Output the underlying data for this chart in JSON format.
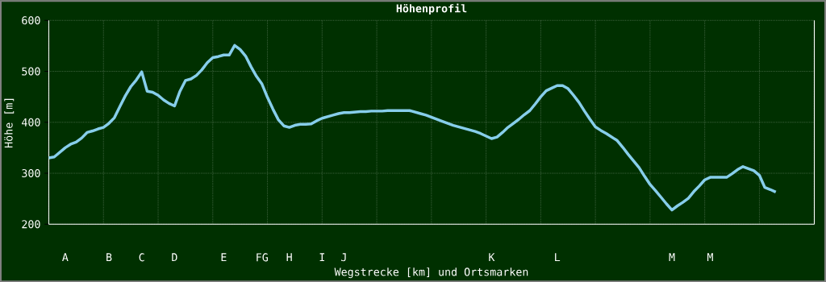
{
  "chart_data": {
    "type": "line",
    "title": "Höhenprofil",
    "xlabel": "Wegstrecke [km] und Ortsmarken",
    "ylabel": "Höhe [m]",
    "categories": [
      null,
      null,
      null,
      "A",
      null,
      null,
      null,
      null,
      null,
      null,
      null,
      "B",
      null,
      null,
      null,
      null,
      null,
      "C",
      null,
      null,
      null,
      null,
      null,
      "D",
      null,
      null,
      null,
      null,
      null,
      null,
      null,
      null,
      "E",
      null,
      null,
      null,
      null,
      null,
      null,
      "FG",
      null,
      null,
      null,
      null,
      "H",
      null,
      null,
      null,
      null,
      null,
      "I",
      null,
      null,
      null,
      "J",
      null,
      null,
      null,
      null,
      null,
      null,
      null,
      null,
      null,
      null,
      null,
      null,
      null,
      null,
      null,
      null,
      null,
      null,
      null,
      null,
      null,
      null,
      null,
      null,
      null,
      null,
      "K",
      null,
      null,
      null,
      null,
      null,
      null,
      null,
      null,
      null,
      null,
      null,
      "L",
      null,
      null,
      null,
      null,
      null,
      null,
      null,
      null,
      null,
      null,
      null,
      null,
      null,
      null,
      null,
      null,
      null,
      null,
      null,
      null,
      "M",
      null,
      null,
      null,
      null,
      null,
      null,
      "M",
      null,
      null,
      null,
      null,
      null,
      null,
      null,
      null,
      null,
      null,
      null,
      null
    ],
    "series": [
      {
        "color": "#87ceeb",
        "values": [
          330,
          332,
          341,
          350,
          357,
          361,
          369,
          380,
          383,
          387,
          390,
          398,
          409,
          431,
          452,
          470,
          483,
          499,
          461,
          459,
          453,
          444,
          437,
          432,
          461,
          482,
          485,
          492,
          503,
          517,
          527,
          529,
          532,
          532,
          551,
          543,
          530,
          509,
          490,
          475,
          449,
          426,
          405,
          393,
          390,
          394,
          396,
          396,
          397,
          403,
          408,
          411,
          414,
          417,
          419,
          419,
          420,
          421,
          421,
          422,
          422,
          422,
          423,
          423,
          423,
          423,
          423,
          420,
          417,
          414,
          410,
          406,
          402,
          398,
          394,
          391,
          388,
          385,
          382,
          378,
          373,
          368,
          371,
          380,
          390,
          398,
          406,
          415,
          423,
          436,
          450,
          462,
          467,
          472,
          472,
          466,
          453,
          439,
          422,
          406,
          391,
          384,
          378,
          371,
          364,
          351,
          337,
          324,
          311,
          294,
          278,
          266,
          253,
          240,
          228,
          236,
          243,
          251,
          264,
          275,
          287,
          292,
          292,
          292,
          292,
          299,
          307,
          313,
          309,
          305,
          296,
          272,
          268,
          263
        ]
      }
    ],
    "ylim": [
      200,
      600
    ],
    "yticks": [
      200,
      300,
      400,
      500,
      600
    ],
    "grid": true,
    "marker": "none",
    "line_style": "solid"
  }
}
